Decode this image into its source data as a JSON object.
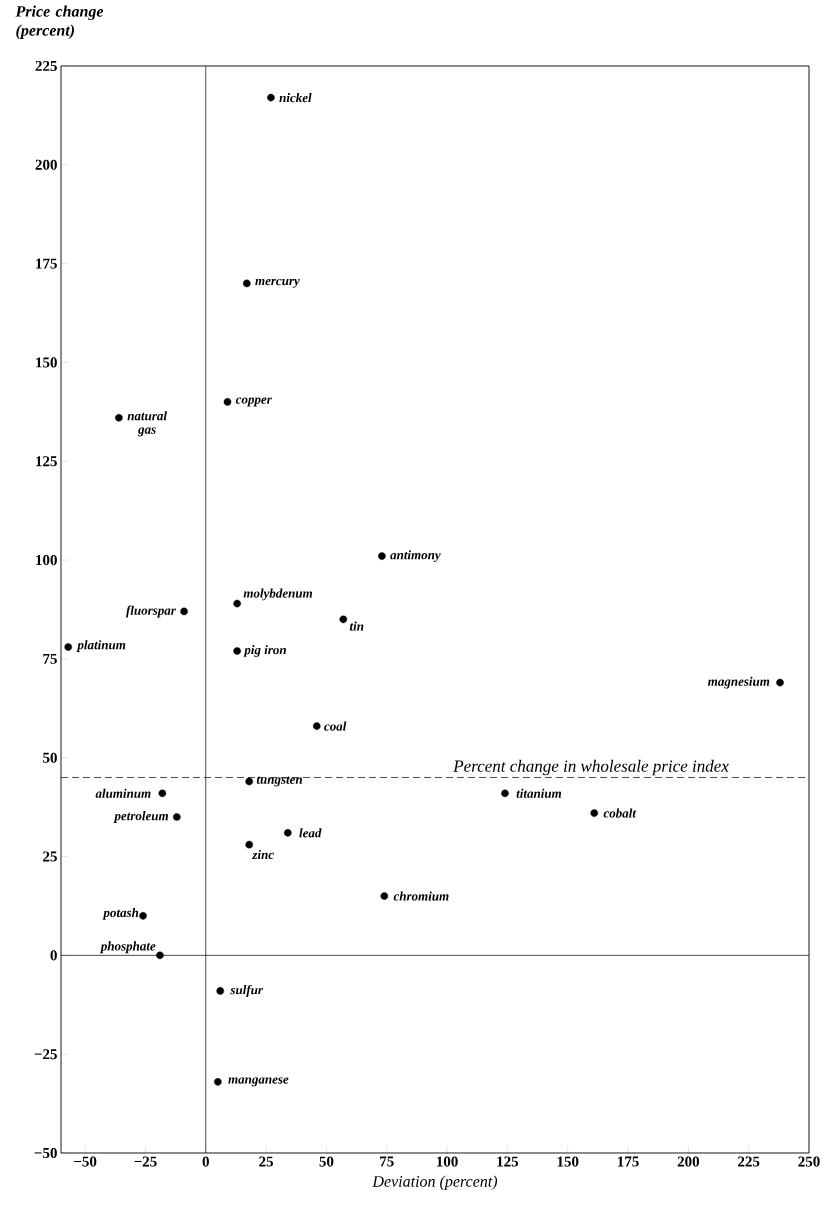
{
  "chart_data": {
    "type": "scatter",
    "xlabel": "Deviation (percent)",
    "ylabel": "Price change (percent)",
    "xlim": [
      -60,
      250
    ],
    "ylim": [
      -50,
      225
    ],
    "xticks": [
      {
        "value": -50,
        "label": "−50"
      },
      {
        "value": -25,
        "label": "−25"
      },
      0,
      25,
      50,
      75,
      100,
      125,
      150,
      175,
      200,
      225,
      250
    ],
    "yticks": [
      {
        "value": -50,
        "label": "−50"
      },
      {
        "value": -25,
        "label": "−25"
      },
      0,
      25,
      50,
      75,
      100,
      125,
      150,
      175,
      200,
      225
    ],
    "marker": "circle",
    "series": [
      {
        "color": "#000000",
        "x": [
          27,
          17,
          9,
          -36,
          73,
          -9,
          -57,
          13,
          57,
          13,
          238,
          46,
          18,
          -18,
          -12,
          124,
          161,
          34,
          18,
          74,
          -26,
          -19,
          6,
          5
        ],
        "values": [
          217,
          170,
          140,
          136,
          101,
          87,
          78,
          89,
          85,
          77,
          69,
          58,
          44,
          41,
          35,
          41,
          36,
          31,
          28,
          15,
          10,
          0,
          -9,
          -32
        ]
      }
    ],
    "ref_lines": [
      {
        "axis": "y",
        "value": 45,
        "label": "Percent change in wholesale price index",
        "line_style": "dashed"
      },
      {
        "axis": "x",
        "value": 0,
        "line_style": "solid"
      },
      {
        "axis": "y",
        "value": 0,
        "line_style": "solid"
      }
    ],
    "annotations": [
      {
        "text": "nickel",
        "x": 27,
        "y": 217
      },
      {
        "text": "mercury",
        "x": 17,
        "y": 170
      },
      {
        "text": "copper",
        "x": 9,
        "y": 140
      },
      {
        "text": "natural gas",
        "x": -36,
        "y": 136
      },
      {
        "text": "antimony",
        "x": 73,
        "y": 101
      },
      {
        "text": "fluorspar",
        "x": -9,
        "y": 87
      },
      {
        "text": "platinum",
        "x": -57,
        "y": 78
      },
      {
        "text": "molybdenum",
        "x": 13,
        "y": 89
      },
      {
        "text": "tin",
        "x": 57,
        "y": 85
      },
      {
        "text": "pig iron",
        "x": 13,
        "y": 77
      },
      {
        "text": "magnesium",
        "x": 238,
        "y": 69
      },
      {
        "text": "coal",
        "x": 46,
        "y": 58
      },
      {
        "text": "tungsten",
        "x": 18,
        "y": 44
      },
      {
        "text": "aluminum",
        "x": -18,
        "y": 41
      },
      {
        "text": "petroleum",
        "x": -12,
        "y": 35
      },
      {
        "text": "titanium",
        "x": 124,
        "y": 41
      },
      {
        "text": "cobalt",
        "x": 161,
        "y": 36
      },
      {
        "text": "lead",
        "x": 34,
        "y": 31
      },
      {
        "text": "zinc",
        "x": 18,
        "y": 28
      },
      {
        "text": "chromium",
        "x": 74,
        "y": 15
      },
      {
        "text": "potash",
        "x": -26,
        "y": 10
      },
      {
        "text": "phosphate",
        "x": -19,
        "y": 0
      },
      {
        "text": "sulfur",
        "x": 6,
        "y": -9
      },
      {
        "text": "manganese",
        "x": 5,
        "y": -32
      }
    ]
  }
}
